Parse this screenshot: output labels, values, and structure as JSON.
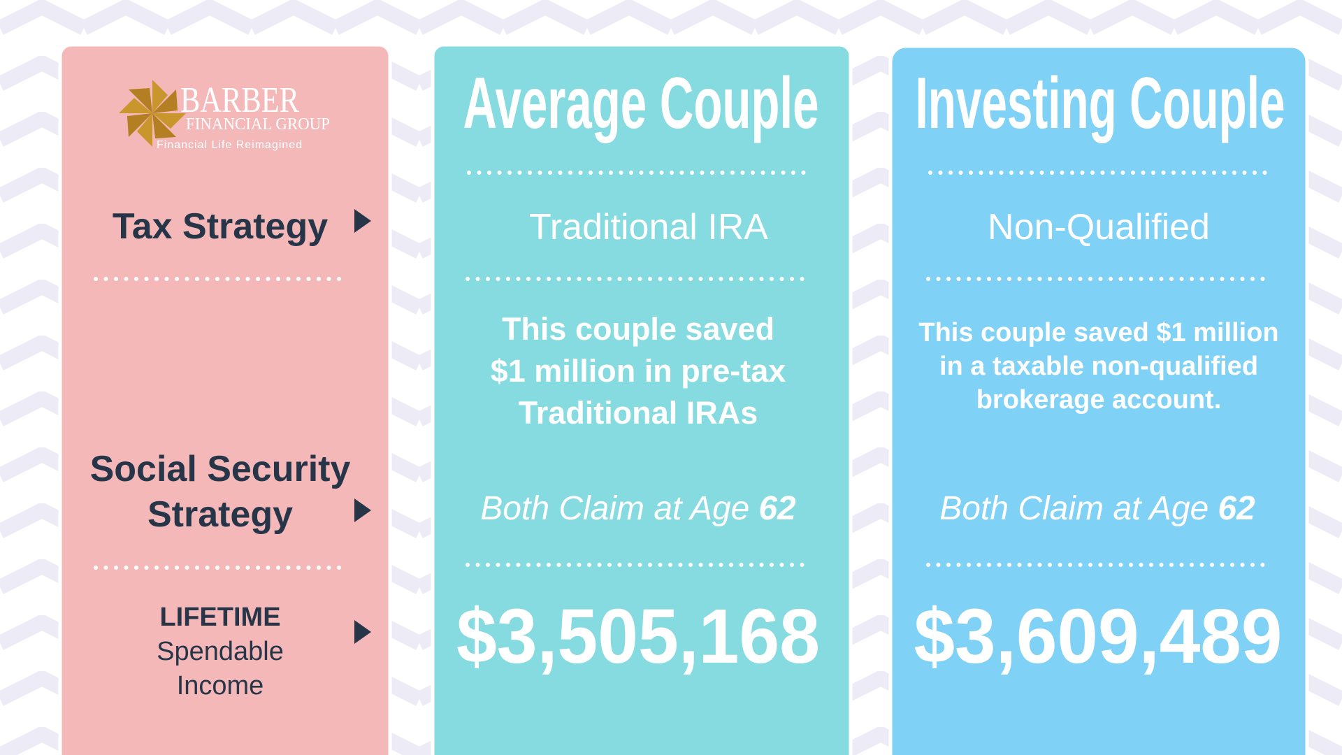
{
  "logo": {
    "name": "Barber",
    "subtitle": "Financial Group",
    "tagline": "Financial Life Reimagined"
  },
  "rows": {
    "tax_strategy": "Tax Strategy",
    "social_security": [
      "Social Security",
      "Strategy"
    ],
    "lifetime": "LIFETIME",
    "spendable": [
      "Spendable",
      "Income"
    ]
  },
  "columns": [
    {
      "title": "Average Couple",
      "tax_strategy": "Traditional IRA",
      "description": [
        "This couple saved",
        "$1 million in pre-tax",
        "Traditional IRAs"
      ],
      "claim_prefix": "Both Claim at Age",
      "claim_age": "62",
      "lifetime_income": "$3,505,168"
    },
    {
      "title": "Investing Couple",
      "tax_strategy": "Non-Qualified",
      "description": [
        "This couple saved $1 million",
        "in a taxable non-qualified",
        "brokerage account."
      ],
      "claim_prefix": "Both Claim at Age",
      "claim_age": "62",
      "lifetime_income": "$3,609,489"
    }
  ]
}
